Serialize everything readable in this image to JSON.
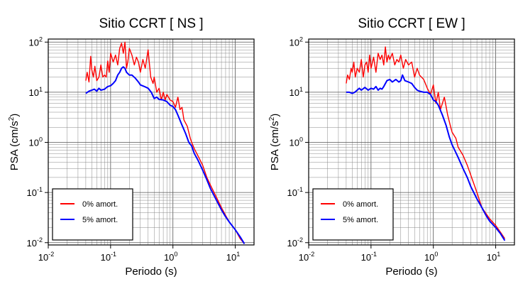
{
  "chart_data": [
    {
      "type": "line",
      "title": "Sitio CCRT [ NS ]",
      "xlabel": "Periodo (s)",
      "ylabel": "PSA (cm/s²)",
      "ylabel_parts": {
        "pre": "PSA (cm/s",
        "sup": "2",
        "post": ")"
      },
      "xscale": "log",
      "yscale": "log",
      "xlim": [
        0.01,
        20
      ],
      "ylim": [
        0.009,
        115
      ],
      "grid": true,
      "legend_position": "bottom-left",
      "x_ticks": [
        {
          "base": "10",
          "exp": "-2",
          "value": 0.01
        },
        {
          "base": "10",
          "exp": "-1",
          "value": 0.1
        },
        {
          "base": "10",
          "exp": "0",
          "value": 1
        },
        {
          "base": "10",
          "exp": "1",
          "value": 10
        }
      ],
      "y_ticks": [
        {
          "base": "10",
          "exp": "-2",
          "value": 0.01
        },
        {
          "base": "10",
          "exp": "-1",
          "value": 0.1
        },
        {
          "base": "10",
          "exp": "0",
          "value": 1
        },
        {
          "base": "10",
          "exp": "1",
          "value": 10
        },
        {
          "base": "10",
          "exp": "2",
          "value": 100
        }
      ],
      "series": [
        {
          "name": "0% amort.",
          "color": "#ff0000",
          "x": [
            0.04,
            0.042,
            0.045,
            0.048,
            0.05,
            0.053,
            0.056,
            0.06,
            0.065,
            0.07,
            0.075,
            0.08,
            0.085,
            0.09,
            0.095,
            0.1,
            0.11,
            0.12,
            0.13,
            0.14,
            0.15,
            0.16,
            0.17,
            0.18,
            0.19,
            0.2,
            0.22,
            0.24,
            0.26,
            0.28,
            0.3,
            0.33,
            0.36,
            0.4,
            0.44,
            0.48,
            0.5,
            0.55,
            0.6,
            0.65,
            0.7,
            0.75,
            0.8,
            0.9,
            1.0,
            1.1,
            1.2,
            1.3,
            1.4,
            1.5,
            1.7,
            1.9,
            2.0,
            2.2,
            2.5,
            3.0,
            3.5,
            4.0,
            5.0,
            6.0,
            7.0,
            8.0,
            10.0,
            12.0,
            14.0
          ],
          "y": [
            17,
            25,
            16,
            52,
            28,
            20,
            33,
            17,
            20,
            35,
            20,
            22,
            20,
            42,
            25,
            60,
            40,
            55,
            35,
            75,
            95,
            60,
            100,
            30,
            42,
            75,
            55,
            35,
            50,
            40,
            25,
            45,
            30,
            70,
            20,
            15,
            20,
            10,
            12,
            7,
            10,
            7,
            9,
            7,
            6.5,
            5,
            8,
            4.5,
            5,
            2.8,
            2.1,
            1.2,
            1.0,
            0.75,
            0.55,
            0.35,
            0.2,
            0.14,
            0.08,
            0.05,
            0.035,
            0.026,
            0.018,
            0.012,
            0.0095
          ]
        },
        {
          "name": "5% amort.",
          "color": "#0000ff",
          "x": [
            0.04,
            0.045,
            0.05,
            0.055,
            0.06,
            0.065,
            0.07,
            0.08,
            0.09,
            0.1,
            0.11,
            0.12,
            0.13,
            0.14,
            0.15,
            0.16,
            0.17,
            0.18,
            0.2,
            0.22,
            0.25,
            0.28,
            0.3,
            0.35,
            0.4,
            0.45,
            0.5,
            0.55,
            0.6,
            0.7,
            0.8,
            0.9,
            1.0,
            1.1,
            1.2,
            1.4,
            1.6,
            1.8,
            2.0,
            2.2,
            2.5,
            3.0,
            3.5,
            4.0,
            5.0,
            6.0,
            7.0,
            8.0,
            10.0,
            12.0,
            14.0
          ],
          "y": [
            9.5,
            10.5,
            11,
            11.5,
            10.5,
            12,
            11,
            11.5,
            13,
            13.5,
            15,
            17,
            22,
            25,
            30,
            32,
            30,
            25,
            22,
            22,
            19,
            16,
            14,
            13,
            12,
            10,
            7.5,
            8,
            7.2,
            7,
            6.5,
            5.5,
            5.2,
            4.5,
            3.5,
            2.2,
            1.5,
            1.0,
            0.85,
            0.6,
            0.45,
            0.28,
            0.18,
            0.12,
            0.07,
            0.045,
            0.033,
            0.026,
            0.018,
            0.013,
            0.0095
          ]
        }
      ]
    },
    {
      "type": "line",
      "title": "Sitio CCRT [ EW ]",
      "xlabel": "Periodo (s)",
      "ylabel": "PSA (cm/s²)",
      "ylabel_parts": {
        "pre": "PSA (cm/s",
        "sup": "2",
        "post": ")"
      },
      "xscale": "log",
      "yscale": "log",
      "xlim": [
        0.01,
        20
      ],
      "ylim": [
        0.009,
        115
      ],
      "grid": true,
      "legend_position": "bottom-left",
      "x_ticks": [
        {
          "base": "10",
          "exp": "-2",
          "value": 0.01
        },
        {
          "base": "10",
          "exp": "-1",
          "value": 0.1
        },
        {
          "base": "10",
          "exp": "0",
          "value": 1
        },
        {
          "base": "10",
          "exp": "1",
          "value": 10
        }
      ],
      "y_ticks": [
        {
          "base": "10",
          "exp": "-2",
          "value": 0.01
        },
        {
          "base": "10",
          "exp": "-1",
          "value": 0.1
        },
        {
          "base": "10",
          "exp": "0",
          "value": 1
        },
        {
          "base": "10",
          "exp": "1",
          "value": 10
        },
        {
          "base": "10",
          "exp": "2",
          "value": 100
        }
      ],
      "series": [
        {
          "name": "0% amort.",
          "color": "#ff0000",
          "x": [
            0.04,
            0.042,
            0.045,
            0.048,
            0.05,
            0.053,
            0.056,
            0.06,
            0.065,
            0.07,
            0.075,
            0.08,
            0.085,
            0.09,
            0.095,
            0.1,
            0.11,
            0.12,
            0.13,
            0.14,
            0.15,
            0.16,
            0.17,
            0.18,
            0.19,
            0.2,
            0.22,
            0.24,
            0.26,
            0.28,
            0.3,
            0.33,
            0.36,
            0.4,
            0.45,
            0.5,
            0.55,
            0.6,
            0.7,
            0.8,
            0.9,
            1.0,
            1.1,
            1.2,
            1.3,
            1.5,
            1.7,
            1.9,
            2.0,
            2.3,
            2.5,
            3.0,
            3.5,
            4.0,
            5.0,
            6.0,
            8.0,
            10.0,
            12.0,
            14.0
          ],
          "y": [
            15,
            22,
            18,
            30,
            25,
            40,
            20,
            30,
            25,
            45,
            20,
            35,
            40,
            25,
            55,
            30,
            50,
            25,
            60,
            45,
            55,
            35,
            80,
            40,
            55,
            45,
            60,
            35,
            45,
            40,
            55,
            30,
            45,
            35,
            40,
            20,
            30,
            22,
            18,
            12,
            9,
            14,
            6,
            10,
            4.5,
            8,
            3.5,
            2.0,
            1.6,
            1.2,
            0.8,
            0.55,
            0.35,
            0.22,
            0.1,
            0.05,
            0.03,
            0.022,
            0.016,
            0.012
          ]
        },
        {
          "name": "5% amort.",
          "color": "#0000ff",
          "x": [
            0.04,
            0.045,
            0.05,
            0.055,
            0.06,
            0.065,
            0.07,
            0.08,
            0.09,
            0.1,
            0.11,
            0.12,
            0.13,
            0.14,
            0.15,
            0.16,
            0.18,
            0.2,
            0.22,
            0.25,
            0.28,
            0.3,
            0.32,
            0.35,
            0.4,
            0.45,
            0.5,
            0.55,
            0.6,
            0.7,
            0.8,
            0.9,
            1.0,
            1.1,
            1.2,
            1.4,
            1.6,
            1.8,
            2.0,
            2.2,
            2.5,
            3.0,
            3.5,
            4.0,
            5.0,
            6.0,
            7.0,
            8.0,
            10.0,
            12.0,
            14.0
          ],
          "y": [
            10,
            10,
            9.5,
            10,
            11,
            12,
            11,
            12.5,
            11,
            12,
            11.5,
            13,
            11,
            12,
            11.5,
            13,
            17,
            18,
            16,
            18,
            16,
            17,
            22,
            17,
            16,
            15,
            12.5,
            11,
            10.5,
            10,
            10,
            9,
            7,
            6.5,
            5.5,
            3.5,
            2.2,
            1.3,
            0.9,
            0.7,
            0.5,
            0.3,
            0.2,
            0.13,
            0.075,
            0.05,
            0.035,
            0.027,
            0.02,
            0.015,
            0.011
          ]
        }
      ]
    }
  ]
}
